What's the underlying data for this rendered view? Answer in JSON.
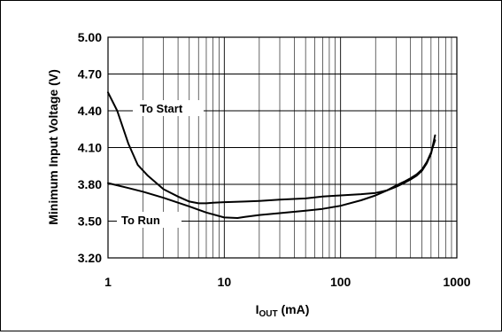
{
  "chart_data": {
    "type": "line",
    "xscale": "log",
    "xlim": [
      1,
      1000
    ],
    "ylim": [
      3.2,
      5.0
    ],
    "xlabel_main": "I",
    "xlabel_sub": "OUT",
    "xlabel_unit": " (mA)",
    "ylabel": "Minimum Input Voltage (V)",
    "xticks": [
      "1",
      "10",
      "100",
      "1000"
    ],
    "yticks": [
      "5.00",
      "4.70",
      "4.40",
      "4.10",
      "3.80",
      "3.50",
      "3.20"
    ],
    "grid": true,
    "series": [
      {
        "name": "To Start",
        "x": [
          1,
          1.2,
          1.5,
          1.8,
          2.2,
          3,
          4,
          5,
          6,
          7,
          8,
          10,
          15,
          20,
          30,
          50,
          70,
          100,
          150,
          200,
          250,
          300,
          350,
          400,
          450,
          500,
          550,
          600,
          650
        ],
        "y": [
          4.55,
          4.4,
          4.13,
          3.96,
          3.87,
          3.76,
          3.7,
          3.66,
          3.645,
          3.645,
          3.65,
          3.655,
          3.66,
          3.665,
          3.675,
          3.685,
          3.7,
          3.71,
          3.72,
          3.73,
          3.75,
          3.78,
          3.81,
          3.84,
          3.87,
          3.91,
          3.97,
          4.05,
          4.2
        ]
      },
      {
        "name": "To Run",
        "x": [
          1,
          1.5,
          2,
          3,
          5,
          7,
          10,
          13,
          15,
          20,
          30,
          50,
          70,
          100,
          150,
          200,
          250,
          300,
          350,
          400,
          450,
          500,
          550,
          600,
          650
        ],
        "y": [
          3.81,
          3.77,
          3.74,
          3.69,
          3.62,
          3.57,
          3.53,
          3.525,
          3.535,
          3.55,
          3.565,
          3.585,
          3.6,
          3.625,
          3.67,
          3.71,
          3.75,
          3.79,
          3.82,
          3.85,
          3.88,
          3.92,
          3.98,
          4.06,
          4.16
        ]
      }
    ],
    "annotations": [
      "To Start",
      "To Run"
    ]
  }
}
